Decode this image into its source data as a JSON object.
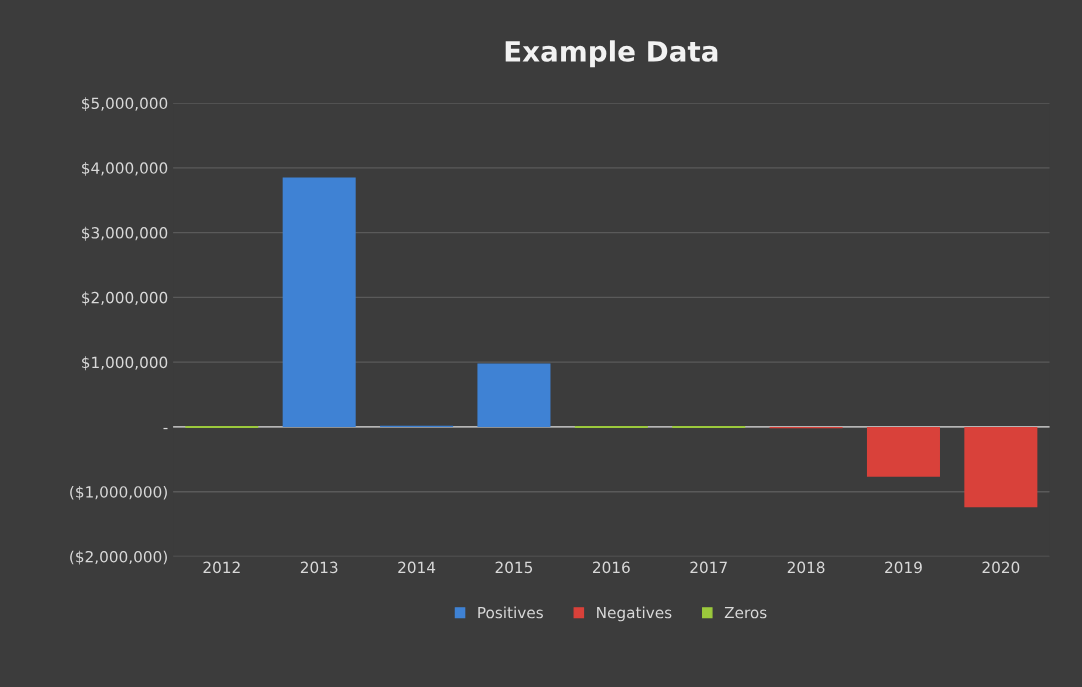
{
  "chart_data": {
    "type": "bar",
    "title": "Example Data",
    "categories": [
      "2012",
      "2013",
      "2014",
      "2015",
      "2016",
      "2017",
      "2018",
      "2019",
      "2020"
    ],
    "series": [
      {
        "name": "Positives",
        "color": "#3f82d4",
        "values": [
          null,
          3850000,
          20000,
          980000,
          null,
          null,
          null,
          null,
          null
        ]
      },
      {
        "name": "Negatives",
        "color": "#d9413a",
        "values": [
          null,
          null,
          null,
          null,
          null,
          null,
          -20000,
          -770000,
          -1240000
        ]
      },
      {
        "name": "Zeros",
        "color": "#9bc93c",
        "values": [
          0,
          null,
          null,
          null,
          0,
          0,
          null,
          null,
          null
        ]
      }
    ],
    "ylim": [
      -2000000,
      5000000
    ],
    "yticks": [
      {
        "value": -2000000,
        "label": "($2,000,000)"
      },
      {
        "value": -1000000,
        "label": "($1,000,000)"
      },
      {
        "value": 0,
        "label": "-"
      },
      {
        "value": 1000000,
        "label": "$1,000,000"
      },
      {
        "value": 2000000,
        "label": "$2,000,000"
      },
      {
        "value": 3000000,
        "label": "$3,000,000"
      },
      {
        "value": 4000000,
        "label": "$4,000,000"
      },
      {
        "value": 5000000,
        "label": "$5,000,000"
      }
    ],
    "grid": "y",
    "legend": "bottom"
  }
}
